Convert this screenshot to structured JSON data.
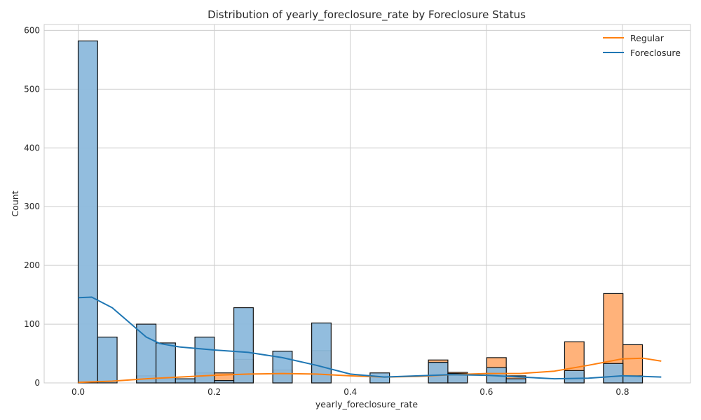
{
  "chart_data": {
    "type": "histogram",
    "title": "Distribution of yearly_foreclosure_rate by Foreclosure Status",
    "xlabel": "yearly_foreclosure_rate",
    "ylabel": "Count",
    "xlim": [
      -0.05,
      0.9
    ],
    "ylim": [
      0,
      610
    ],
    "xticks": [
      0.0,
      0.2,
      0.4,
      0.6,
      0.8
    ],
    "xtick_labels": [
      "0.0",
      "0.2",
      "0.4",
      "0.6",
      "0.8"
    ],
    "yticks": [
      0,
      100,
      200,
      300,
      400,
      500,
      600
    ],
    "ytick_labels": [
      "0",
      "100",
      "200",
      "300",
      "400",
      "500",
      "600"
    ],
    "grid": true,
    "legend_position": "top-right",
    "bin_start": 0.0,
    "bin_width": 0.0286,
    "series": [
      {
        "name": "Regular",
        "color": "#ff7f0e",
        "bar_fill": "#ffb27a",
        "counts": [
          0,
          0,
          0,
          12,
          7,
          2,
          17,
          17,
          40,
          0,
          22,
          0,
          55,
          0,
          0,
          0,
          0,
          0,
          39,
          18,
          0,
          43,
          12,
          0,
          0,
          70,
          0,
          152,
          65
        ],
        "kde": [
          [
            0.0,
            1
          ],
          [
            0.05,
            3
          ],
          [
            0.1,
            7
          ],
          [
            0.15,
            10
          ],
          [
            0.2,
            13
          ],
          [
            0.25,
            15
          ],
          [
            0.3,
            16
          ],
          [
            0.35,
            15
          ],
          [
            0.4,
            12
          ],
          [
            0.45,
            10
          ],
          [
            0.5,
            11
          ],
          [
            0.55,
            14
          ],
          [
            0.6,
            16
          ],
          [
            0.65,
            16
          ],
          [
            0.7,
            20
          ],
          [
            0.75,
            30
          ],
          [
            0.8,
            41
          ],
          [
            0.83,
            42
          ],
          [
            0.857,
            37
          ]
        ]
      },
      {
        "name": "Foreclosure",
        "color": "#1f77b4",
        "bar_fill": "#8cb9dc",
        "counts": [
          582,
          78,
          0,
          100,
          68,
          7,
          78,
          4,
          128,
          0,
          54,
          0,
          102,
          0,
          0,
          17,
          0,
          0,
          35,
          16,
          0,
          26,
          7,
          0,
          0,
          21,
          0,
          33,
          12
        ],
        "kde": [
          [
            0.0,
            145
          ],
          [
            0.02,
            146
          ],
          [
            0.05,
            128
          ],
          [
            0.08,
            98
          ],
          [
            0.1,
            78
          ],
          [
            0.12,
            67
          ],
          [
            0.15,
            61
          ],
          [
            0.2,
            56
          ],
          [
            0.25,
            52
          ],
          [
            0.3,
            43
          ],
          [
            0.35,
            30
          ],
          [
            0.4,
            15
          ],
          [
            0.45,
            10
          ],
          [
            0.5,
            12
          ],
          [
            0.55,
            14
          ],
          [
            0.6,
            13
          ],
          [
            0.65,
            10
          ],
          [
            0.7,
            7
          ],
          [
            0.75,
            8
          ],
          [
            0.8,
            12
          ],
          [
            0.83,
            11
          ],
          [
            0.857,
            10
          ]
        ]
      }
    ]
  }
}
